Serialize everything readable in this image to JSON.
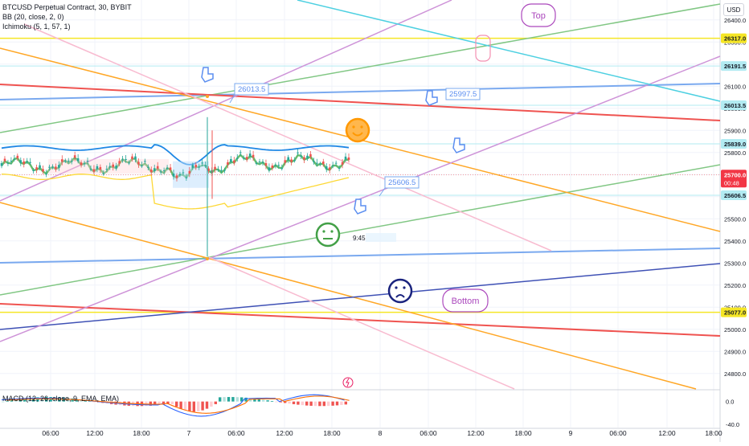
{
  "legend": {
    "title": "BTCUSD Perpetual Contract, 30, BYBIT",
    "bb": "BB (20, close, 2, 0)",
    "ichimoku": "Ichimoku (5, 1, 57, 1)"
  },
  "macd_legend": "MACD (12, 26, close, 9, EMA, EMA)",
  "currency": "USD",
  "chart_data": {
    "type": "line",
    "title": "BTCUSD Perpetual Contract, 30, BYBIT",
    "y_ticks": [
      24800,
      24900,
      25000,
      25100,
      25200,
      25300,
      25400,
      25500,
      25600,
      25700,
      25800,
      25900,
      26000,
      26100,
      26200,
      26300,
      26400
    ],
    "y_tick_labels": [
      "24800.0",
      "24900.0",
      "25000.0",
      "25100.0",
      "25200.0",
      "25300.0",
      "25400.0",
      "25500.0",
      "25600.0",
      "25700.0",
      "25800.0",
      "25900.0",
      "26000.0",
      "26100.0",
      "26200.0",
      "26300.0",
      "26400.0"
    ],
    "ylim": [
      24730,
      26490
    ],
    "x_tick_labels": [
      "06:00",
      "12:00",
      "18:00",
      "7",
      "06:00",
      "12:00",
      "18:00",
      "8",
      "06:00",
      "12:00",
      "18:00",
      "9",
      "06:00",
      "12:00",
      "18:00"
    ],
    "price_labels": [
      {
        "value": 26317.0,
        "text": "26317.0",
        "color": "#f5e625"
      },
      {
        "value": 26191.5,
        "text": "26191.5",
        "color": "#b2ebf2"
      },
      {
        "value": 26013.5,
        "text": "26013.5",
        "color": "#b2ebf2"
      },
      {
        "value": 25839.0,
        "text": "25839.0",
        "color": "#b2ebf2"
      },
      {
        "value": 25700.0,
        "text": "25700.0",
        "color": "#f23645"
      },
      {
        "value": 25606.5,
        "text": "25606.5",
        "color": "#b2ebf2"
      },
      {
        "value": 25077.0,
        "text": "25077.0",
        "color": "#f5e625"
      }
    ],
    "current_price_countdown": "00:48",
    "level_callouts": [
      "26013.5",
      "25997.5",
      "25606.5"
    ],
    "annotations": {
      "top": "Top",
      "bottom": "Bottom",
      "clock": "9:45"
    },
    "macd": {
      "y_tick_labels": [
        "0.0",
        "-40.0"
      ],
      "ylim": [
        -46,
        18
      ]
    },
    "grid": true
  }
}
